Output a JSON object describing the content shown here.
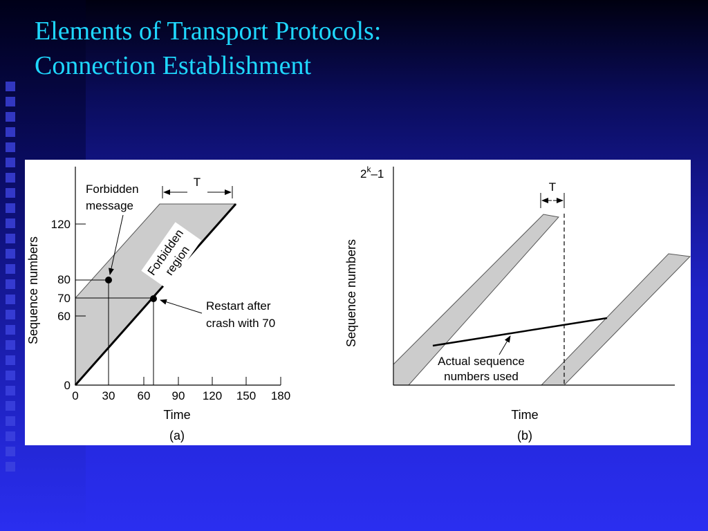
{
  "slide": {
    "title_line1": "Elements of Transport Protocols:",
    "title_line2": "Connection Establishment"
  },
  "figure_a": {
    "caption": "(a)",
    "y_axis_label": "Sequence numbers",
    "x_axis_label": "Time",
    "y_ticks": [
      "0",
      "60",
      "70",
      "80",
      "120"
    ],
    "x_ticks": [
      "0",
      "30",
      "60",
      "90",
      "120",
      "150",
      "180"
    ],
    "interval_label": "T",
    "forbidden_message_label_line1": "Forbidden",
    "forbidden_message_label_line2": "message",
    "forbidden_region_label_line1": "Forbidden",
    "forbidden_region_label_line2": "region",
    "restart_label_line1": "Restart after",
    "restart_label_line2": "crash with 70"
  },
  "figure_b": {
    "caption": "(b)",
    "y_axis_label": "Sequence numbers",
    "x_axis_label": "Time",
    "y_max_label": "2",
    "y_max_exponent": "k",
    "y_max_suffix": "–1",
    "interval_label": "T",
    "actual_label_line1": "Actual sequence",
    "actual_label_line2": "numbers used"
  }
}
